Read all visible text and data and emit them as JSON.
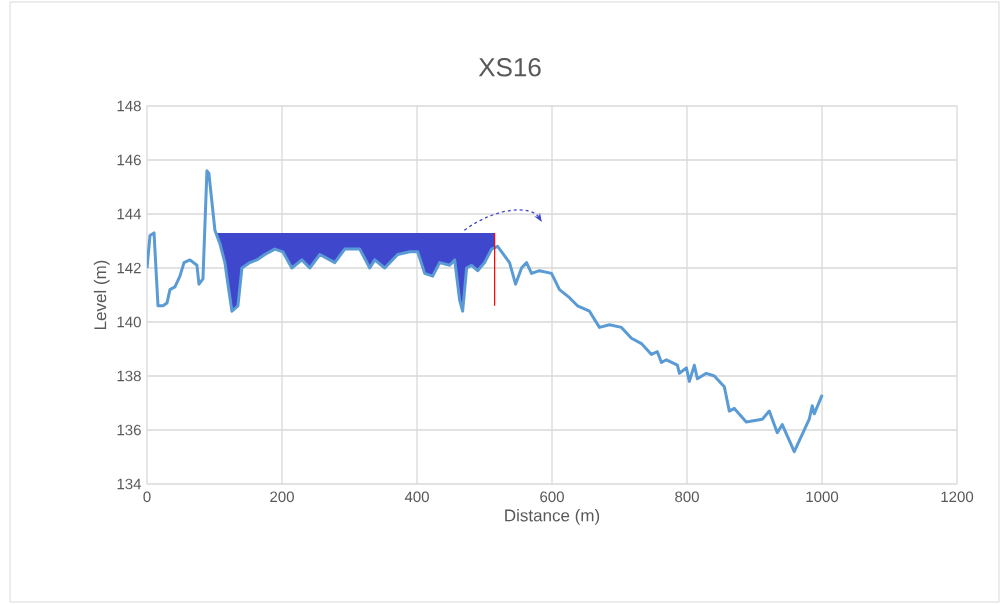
{
  "chart_data": {
    "type": "line",
    "title": "XS16",
    "xlabel": "Distance (m)",
    "ylabel": "Level  (m)",
    "xlim": [
      0,
      1200
    ],
    "ylim": [
      134,
      148
    ],
    "xticks": [
      0,
      200,
      400,
      600,
      800,
      1000,
      1200
    ],
    "yticks": [
      134,
      136,
      138,
      140,
      142,
      144,
      146,
      148
    ],
    "grid": true,
    "legend": false,
    "marker": "none",
    "series": [
      {
        "type": "area",
        "color": "#3f48cc",
        "x": [
          95,
          515
        ],
        "values": [
          143.3,
          143.3
        ]
      },
      {
        "color": "#5b9bd5",
        "x": [
          0,
          4.4,
          10.4,
          16.3,
          23.7,
          29.6,
          34,
          41.4,
          48.8,
          54.8,
          63.6,
          74,
          77,
          82.9,
          88.8,
          91.7,
          100.6,
          108,
          115.4,
          119.9,
          125.8,
          134.7,
          140.6,
          152.4,
          162.8,
          174.6,
          189.4,
          201.2,
          214.6,
          229.4,
          241.2,
          256,
          278.2,
          293,
          315.2,
          330,
          337.4,
          352.2,
          371.4,
          389.2,
          401,
          411.4,
          423.2,
          433.6,
          448.4,
          455.8,
          463.2,
          467.6,
          473.5,
          480.9,
          489.8,
          500.1,
          510.5,
          519.4,
          537.1,
          546,
          554.9,
          562.3,
          569.7,
          581.5,
          599.3,
          611.1,
          625.9,
          637.8,
          655.5,
          670.3,
          685.1,
          702.9,
          717.7,
          732.5,
          747.3,
          756.1,
          762.1,
          769.5,
          785.8,
          788.7,
          799.1,
          803.5,
          810.9,
          815.3,
          828.6,
          840.5,
          855.3,
          862.7,
          870.1,
          887.8,
          911.5,
          921.9,
          933.7,
          941.1,
          958.9,
          981.1,
          985.5,
          988.5,
          1000.3
        ],
        "values": [
          142.0,
          143.2,
          143.3,
          140.6,
          140.6,
          140.7,
          141.2,
          141.3,
          141.7,
          142.2,
          142.3,
          142.1,
          141.4,
          141.6,
          145.6,
          145.5,
          143.4,
          142.9,
          142.2,
          141.4,
          140.4,
          140.6,
          142.0,
          142.2,
          142.3,
          142.5,
          142.7,
          142.6,
          142.0,
          142.3,
          142.0,
          142.5,
          142.2,
          142.7,
          142.7,
          142.0,
          142.3,
          142.0,
          142.5,
          142.6,
          142.6,
          141.8,
          141.7,
          142.2,
          142.1,
          142.3,
          140.8,
          140.4,
          142.0,
          142.1,
          141.9,
          142.2,
          142.7,
          142.8,
          142.2,
          141.4,
          142.0,
          142.2,
          141.8,
          141.9,
          141.8,
          141.2,
          140.9,
          140.6,
          140.4,
          139.8,
          139.9,
          139.8,
          139.4,
          139.2,
          138.8,
          138.9,
          138.5,
          138.6,
          138.4,
          138.1,
          138.3,
          137.8,
          138.4,
          137.9,
          138.1,
          138.0,
          137.6,
          136.7,
          136.8,
          136.3,
          136.4,
          136.7,
          135.9,
          136.2,
          135.2,
          136.4,
          136.9,
          136.6,
          137.3
        ]
      },
      {
        "color": "#ff0000",
        "x": [
          515,
          515
        ],
        "values": [
          143.3,
          140.6
        ]
      }
    ]
  }
}
